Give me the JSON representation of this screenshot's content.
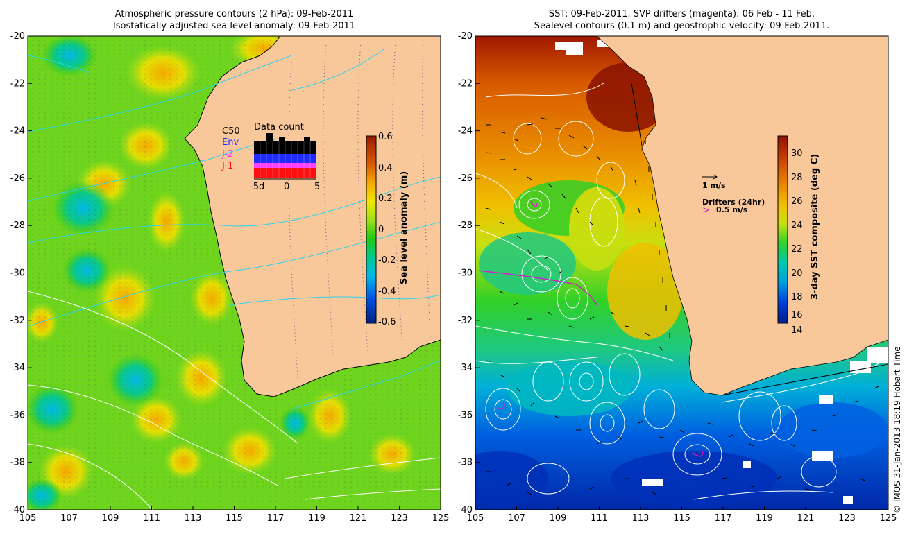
{
  "left_panel": {
    "title_line1": "Atmospheric pressure contours (2 hPa): 09-Feb-2011",
    "title_line2": "Isostatically adjusted sea level anomaly: 09-Feb-2011",
    "colorbar": {
      "label": "Sea level anomaly (m)",
      "ticks": [
        "0.6",
        "0.4",
        "0.2",
        "0",
        "-0.2",
        "-0.4",
        "-0.6"
      ]
    },
    "inset": {
      "title": "Data count",
      "legend": [
        "C50",
        "Env",
        "J-2",
        "J-1"
      ],
      "x_ticks": [
        "-5d",
        "0",
        "5"
      ]
    }
  },
  "right_panel": {
    "title_line1": "SST: 09-Feb-2011. SVP drifters (magenta): 06 Feb - 11 Feb.",
    "title_line2": "Sealevel contours (0.1 m) and geostrophic velocity: 09-Feb-2011.",
    "colorbar": {
      "label": "3-day SST composite (deg C)",
      "ticks": [
        "30",
        "28",
        "26",
        "24",
        "22",
        "20",
        "18",
        "16",
        "14"
      ]
    },
    "velocity_key": "1 m/s",
    "drifter_key_title": "Drifters (24hr)",
    "drifter_key_value": "0.5 m/s"
  },
  "axes": {
    "lat_ticks": [
      "-20",
      "-22",
      "-24",
      "-26",
      "-28",
      "-30",
      "-32",
      "-34",
      "-36",
      "-38",
      "-40"
    ],
    "lon_ticks": [
      "105",
      "107",
      "109",
      "111",
      "113",
      "115",
      "117",
      "119",
      "121",
      "123",
      "125"
    ]
  },
  "credit": "© IMOS 31-Jan-2013 18:19 Hobart Time",
  "colors": {
    "land": "#f9c89a",
    "sla_ramp": [
      "#00207a",
      "#0050e0",
      "#00b8e8",
      "#00c890",
      "#22c814",
      "#9de01a",
      "#f0e800",
      "#f5a800",
      "#d85a00",
      "#9a1a00"
    ],
    "sst_ramp": [
      "#001c88",
      "#0040d8",
      "#00a0e0",
      "#00c8b0",
      "#30d028",
      "#c8e010",
      "#f0c000",
      "#e88000",
      "#c84000",
      "#8a1200"
    ],
    "inset_bars": [
      "#000000",
      "#1f2bff",
      "#ff40ff",
      "#ff1010"
    ]
  }
}
